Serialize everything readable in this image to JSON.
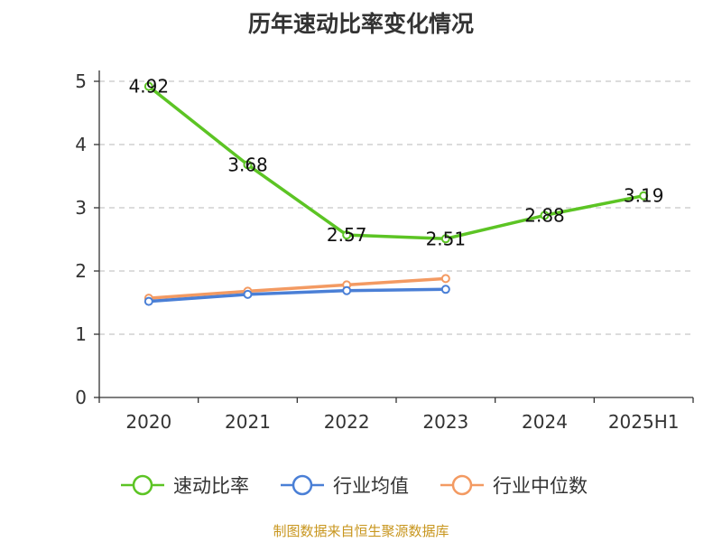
{
  "chart_data": {
    "type": "line",
    "title": "历年速动比率变化情况",
    "categories": [
      "2020",
      "2021",
      "2022",
      "2023",
      "2024",
      "2025H1"
    ],
    "ylim": [
      0,
      5
    ],
    "yticks": [
      0,
      1,
      2,
      3,
      4,
      5
    ],
    "grid": true,
    "grid_style": "dashed",
    "legend_position": "bottom",
    "series": [
      {
        "name": "速动比率",
        "color": "#5cc424",
        "values": [
          4.92,
          3.68,
          2.57,
          2.51,
          2.88,
          3.19
        ],
        "labels": [
          "4.92",
          "3.68",
          "2.57",
          "2.51",
          "2.88",
          "3.19"
        ],
        "show_labels": true
      },
      {
        "name": "行业均值",
        "color": "#4a7fd6",
        "values": [
          1.52,
          1.63,
          1.69,
          1.71,
          null,
          null
        ],
        "show_labels": false
      },
      {
        "name": "行业中位数",
        "color": "#f39a62",
        "values": [
          1.57,
          1.68,
          1.78,
          1.88,
          null,
          null
        ],
        "show_labels": false
      }
    ],
    "source": "制图数据来自恒生聚源数据库"
  }
}
